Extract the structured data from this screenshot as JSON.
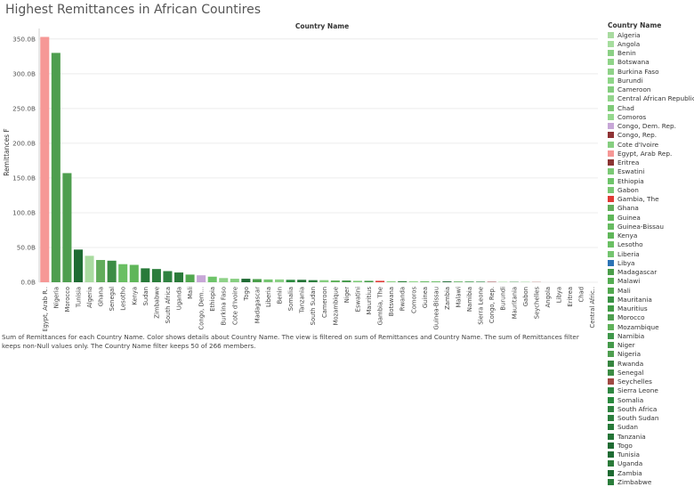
{
  "page": {
    "title": "Highest Remittances in African Countires"
  },
  "chart_data": {
    "type": "bar",
    "title": "Highest Remittances in African Countires",
    "column_header": "Country Name",
    "ylabel": "Remittances F",
    "ylim": [
      0,
      360
    ],
    "yticks": [
      0,
      50,
      100,
      150,
      200,
      250,
      300,
      350
    ],
    "ytick_labels": [
      "0.0B",
      "50.0B",
      "100.0B",
      "150.0B",
      "200.0B",
      "250.0B",
      "300.0B",
      "350.0B"
    ],
    "grid": true,
    "legend_position": "right",
    "categories": [
      "Egypt, Arab R..",
      "Nigeria",
      "Morocco",
      "Tunisia",
      "Algeria",
      "Ghana",
      "Senegal",
      "Lesotho",
      "Kenya",
      "Sudan",
      "Zimbabwe",
      "South Africa",
      "Uganda",
      "Mali",
      "Congo, Dem...",
      "Ethiopia",
      "Burkina Faso",
      "Cote d'Ivoire",
      "Togo",
      "Madagascar",
      "Liberia",
      "Benin",
      "Somalia",
      "Tanzania",
      "South Sudan",
      "Cameroon",
      "Mozambique",
      "Niger",
      "Eswatini",
      "Mauritius",
      "Gambia, The",
      "Botswana",
      "Rwanda",
      "Comoros",
      "Guinea",
      "Guinea-Bissau",
      "Zambia",
      "Malawi",
      "Namibia",
      "Sierra Leone",
      "Congo, Rep.",
      "Burundi",
      "Mauritania",
      "Gabon",
      "Seychelles",
      "Angola",
      "Libya",
      "Eritrea",
      "Chad",
      "Central Afric.."
    ],
    "values": [
      353,
      330,
      157,
      47,
      38,
      32,
      31,
      26,
      25,
      20,
      19,
      16,
      14,
      11,
      10,
      8,
      6,
      5,
      5,
      4.5,
      4,
      4,
      3.5,
      3.5,
      3,
      3,
      2.5,
      2.5,
      2,
      2,
      2,
      1.5,
      1.5,
      1.5,
      1.2,
      1.2,
      1.2,
      1,
      1,
      0.8,
      0.6,
      0.5,
      0.5,
      0.4,
      0.3,
      0,
      0,
      0,
      0,
      0
    ],
    "colors": [
      "#f69896",
      "#4e9e4f",
      "#4e9e4f",
      "#1e6b33",
      "#a9dba0",
      "#62ad5b",
      "#3c8c44",
      "#6abf63",
      "#5fb659",
      "#287a3a",
      "#2a7d3b",
      "#2f8240",
      "#2a7a39",
      "#52a84f",
      "#c7a7d7",
      "#6ec46a",
      "#8fd288",
      "#86ce80",
      "#1f6b33",
      "#4a9e4a",
      "#74c46f",
      "#8bd085",
      "#2a8a3e",
      "#247437",
      "#2d7f3e",
      "#84cd7e",
      "#5fb15a",
      "#44994a",
      "#7bc975",
      "#419b46",
      "#e03a35",
      "#8fd488",
      "#36853f",
      "#95d88e",
      "#5fb759",
      "#67bb61",
      "#1d6a31",
      "#55ad53",
      "#3f974a",
      "#2f8742",
      "#8e3234",
      "#8fd688",
      "#3a9245",
      "#7ac774",
      "#a04a44",
      "#a6dd9e",
      "#2c73b5",
      "#8b3533",
      "#7fca78",
      "#93d58c"
    ]
  },
  "caption": "Sum of Remittances for each Country Name.  Color shows details about Country Name. The view is filtered on sum of Remittances and Country Name. The sum of Remittances filter keeps non-Null values only. The Country Name filter keeps 50 of 266 members.",
  "legend": {
    "title": "Country Name",
    "items": [
      {
        "label": "Algeria",
        "color": "#a9dba0"
      },
      {
        "label": "Angola",
        "color": "#a6dd9e"
      },
      {
        "label": "Benin",
        "color": "#8bd085"
      },
      {
        "label": "Botswana",
        "color": "#8fd488"
      },
      {
        "label": "Burkina Faso",
        "color": "#8fd288"
      },
      {
        "label": "Burundi",
        "color": "#8fd688"
      },
      {
        "label": "Cameroon",
        "color": "#84cd7e"
      },
      {
        "label": "Central African Republic",
        "color": "#93d58c"
      },
      {
        "label": "Chad",
        "color": "#7fca78"
      },
      {
        "label": "Comoros",
        "color": "#95d88e"
      },
      {
        "label": "Congo, Dem. Rep.",
        "color": "#c7a7d7"
      },
      {
        "label": "Congo, Rep.",
        "color": "#8e3234"
      },
      {
        "label": "Cote d'Ivoire",
        "color": "#86ce80"
      },
      {
        "label": "Egypt, Arab Rep.",
        "color": "#f69896"
      },
      {
        "label": "Eritrea",
        "color": "#8b3533"
      },
      {
        "label": "Eswatini",
        "color": "#7bc975"
      },
      {
        "label": "Ethiopia",
        "color": "#6ec46a"
      },
      {
        "label": "Gabon",
        "color": "#7ac774"
      },
      {
        "label": "Gambia, The",
        "color": "#e03a35"
      },
      {
        "label": "Ghana",
        "color": "#62ad5b"
      },
      {
        "label": "Guinea",
        "color": "#5fb759"
      },
      {
        "label": "Guinea-Bissau",
        "color": "#67bb61"
      },
      {
        "label": "Kenya",
        "color": "#5fb659"
      },
      {
        "label": "Lesotho",
        "color": "#6abf63"
      },
      {
        "label": "Liberia",
        "color": "#74c46f"
      },
      {
        "label": "Libya",
        "color": "#2c73b5"
      },
      {
        "label": "Madagascar",
        "color": "#4a9e4a"
      },
      {
        "label": "Malawi",
        "color": "#55ad53"
      },
      {
        "label": "Mali",
        "color": "#52a84f"
      },
      {
        "label": "Mauritania",
        "color": "#3a9245"
      },
      {
        "label": "Mauritius",
        "color": "#419b46"
      },
      {
        "label": "Morocco",
        "color": "#4e9e4f"
      },
      {
        "label": "Mozambique",
        "color": "#5fb15a"
      },
      {
        "label": "Namibia",
        "color": "#3f974a"
      },
      {
        "label": "Niger",
        "color": "#44994a"
      },
      {
        "label": "Nigeria",
        "color": "#4e9e4f"
      },
      {
        "label": "Rwanda",
        "color": "#36853f"
      },
      {
        "label": "Senegal",
        "color": "#3c8c44"
      },
      {
        "label": "Seychelles",
        "color": "#a04a44"
      },
      {
        "label": "Sierra Leone",
        "color": "#2f8742"
      },
      {
        "label": "Somalia",
        "color": "#2a8a3e"
      },
      {
        "label": "South Africa",
        "color": "#2f8240"
      },
      {
        "label": "South Sudan",
        "color": "#2d7f3e"
      },
      {
        "label": "Sudan",
        "color": "#287a3a"
      },
      {
        "label": "Tanzania",
        "color": "#247437"
      },
      {
        "label": "Togo",
        "color": "#1f6b33"
      },
      {
        "label": "Tunisia",
        "color": "#1e6b33"
      },
      {
        "label": "Uganda",
        "color": "#2a7a39"
      },
      {
        "label": "Zambia",
        "color": "#1d6a31"
      },
      {
        "label": "Zimbabwe",
        "color": "#2a7d3b"
      }
    ]
  }
}
